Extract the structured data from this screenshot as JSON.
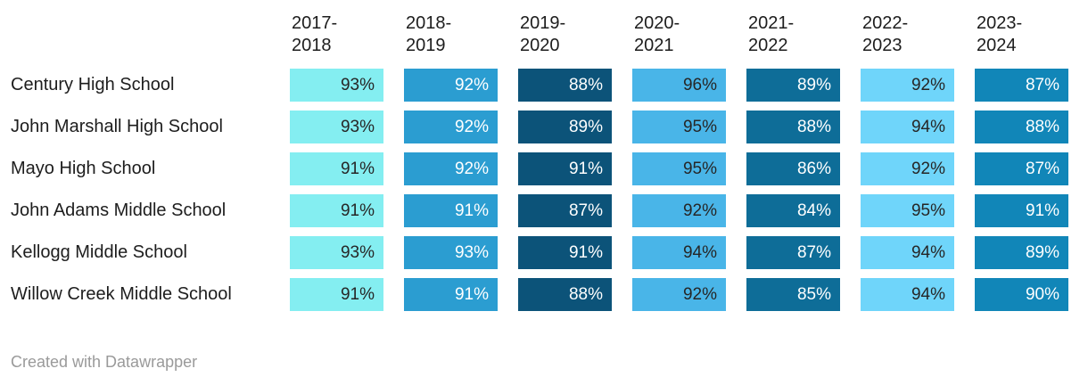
{
  "table": {
    "columns": [
      {
        "label": "2017-\n2018",
        "color": "#84EEF1",
        "text_color": "#262626"
      },
      {
        "label": "2018-\n2019",
        "color": "#2B9DD1",
        "text_color": "#FFFFFF"
      },
      {
        "label": "2019-\n2020",
        "color": "#0C5379",
        "text_color": "#FFFFFF"
      },
      {
        "label": "2020-\n2021",
        "color": "#49B5E8",
        "text_color": "#262626"
      },
      {
        "label": "2021-\n2022",
        "color": "#0E6D98",
        "text_color": "#FFFFFF"
      },
      {
        "label": "2022-\n2023",
        "color": "#6FD5FA",
        "text_color": "#262626"
      },
      {
        "label": "2023-\n2024",
        "color": "#1186B8",
        "text_color": "#FFFFFF"
      }
    ],
    "rows": [
      {
        "school": "Century High School",
        "cells": [
          "93%",
          "92%",
          "88%",
          "96%",
          "89%",
          "92%",
          "87%"
        ]
      },
      {
        "school": "John Marshall High School",
        "cells": [
          "93%",
          "92%",
          "89%",
          "95%",
          "88%",
          "94%",
          "88%"
        ]
      },
      {
        "school": "Mayo High School",
        "cells": [
          "91%",
          "92%",
          "91%",
          "95%",
          "86%",
          "92%",
          "87%"
        ]
      },
      {
        "school": "John Adams Middle School",
        "cells": [
          "91%",
          "91%",
          "87%",
          "92%",
          "84%",
          "95%",
          "91%"
        ]
      },
      {
        "school": "Kellogg Middle School",
        "cells": [
          "93%",
          "93%",
          "91%",
          "94%",
          "87%",
          "94%",
          "89%"
        ]
      },
      {
        "school": "Willow Creek Middle School",
        "cells": [
          "91%",
          "91%",
          "88%",
          "92%",
          "85%",
          "94%",
          "90%"
        ]
      }
    ]
  },
  "footer": {
    "credit": "Created with Datawrapper"
  },
  "chart_data": {
    "type": "heatmap",
    "categories": [
      "2017-2018",
      "2018-2019",
      "2019-2020",
      "2020-2021",
      "2021-2022",
      "2022-2023",
      "2023-2024"
    ],
    "series": [
      {
        "name": "Century High School",
        "values": [
          93,
          92,
          88,
          96,
          89,
          92,
          87
        ]
      },
      {
        "name": "John Marshall High School",
        "values": [
          93,
          92,
          89,
          95,
          88,
          94,
          88
        ]
      },
      {
        "name": "Mayo High School",
        "values": [
          91,
          92,
          91,
          95,
          86,
          92,
          87
        ]
      },
      {
        "name": "John Adams Middle School",
        "values": [
          91,
          91,
          87,
          92,
          84,
          95,
          91
        ]
      },
      {
        "name": "Kellogg Middle School",
        "values": [
          93,
          93,
          91,
          94,
          87,
          94,
          89
        ]
      },
      {
        "name": "Willow Creek Middle School",
        "values": [
          91,
          91,
          88,
          92,
          85,
          94,
          90
        ]
      }
    ],
    "value_unit": "%",
    "column_colors": [
      "#84EEF1",
      "#2B9DD1",
      "#0C5379",
      "#49B5E8",
      "#0E6D98",
      "#6FD5FA",
      "#1186B8"
    ],
    "legend": "none",
    "grid": "off",
    "credit": "Created with Datawrapper"
  }
}
